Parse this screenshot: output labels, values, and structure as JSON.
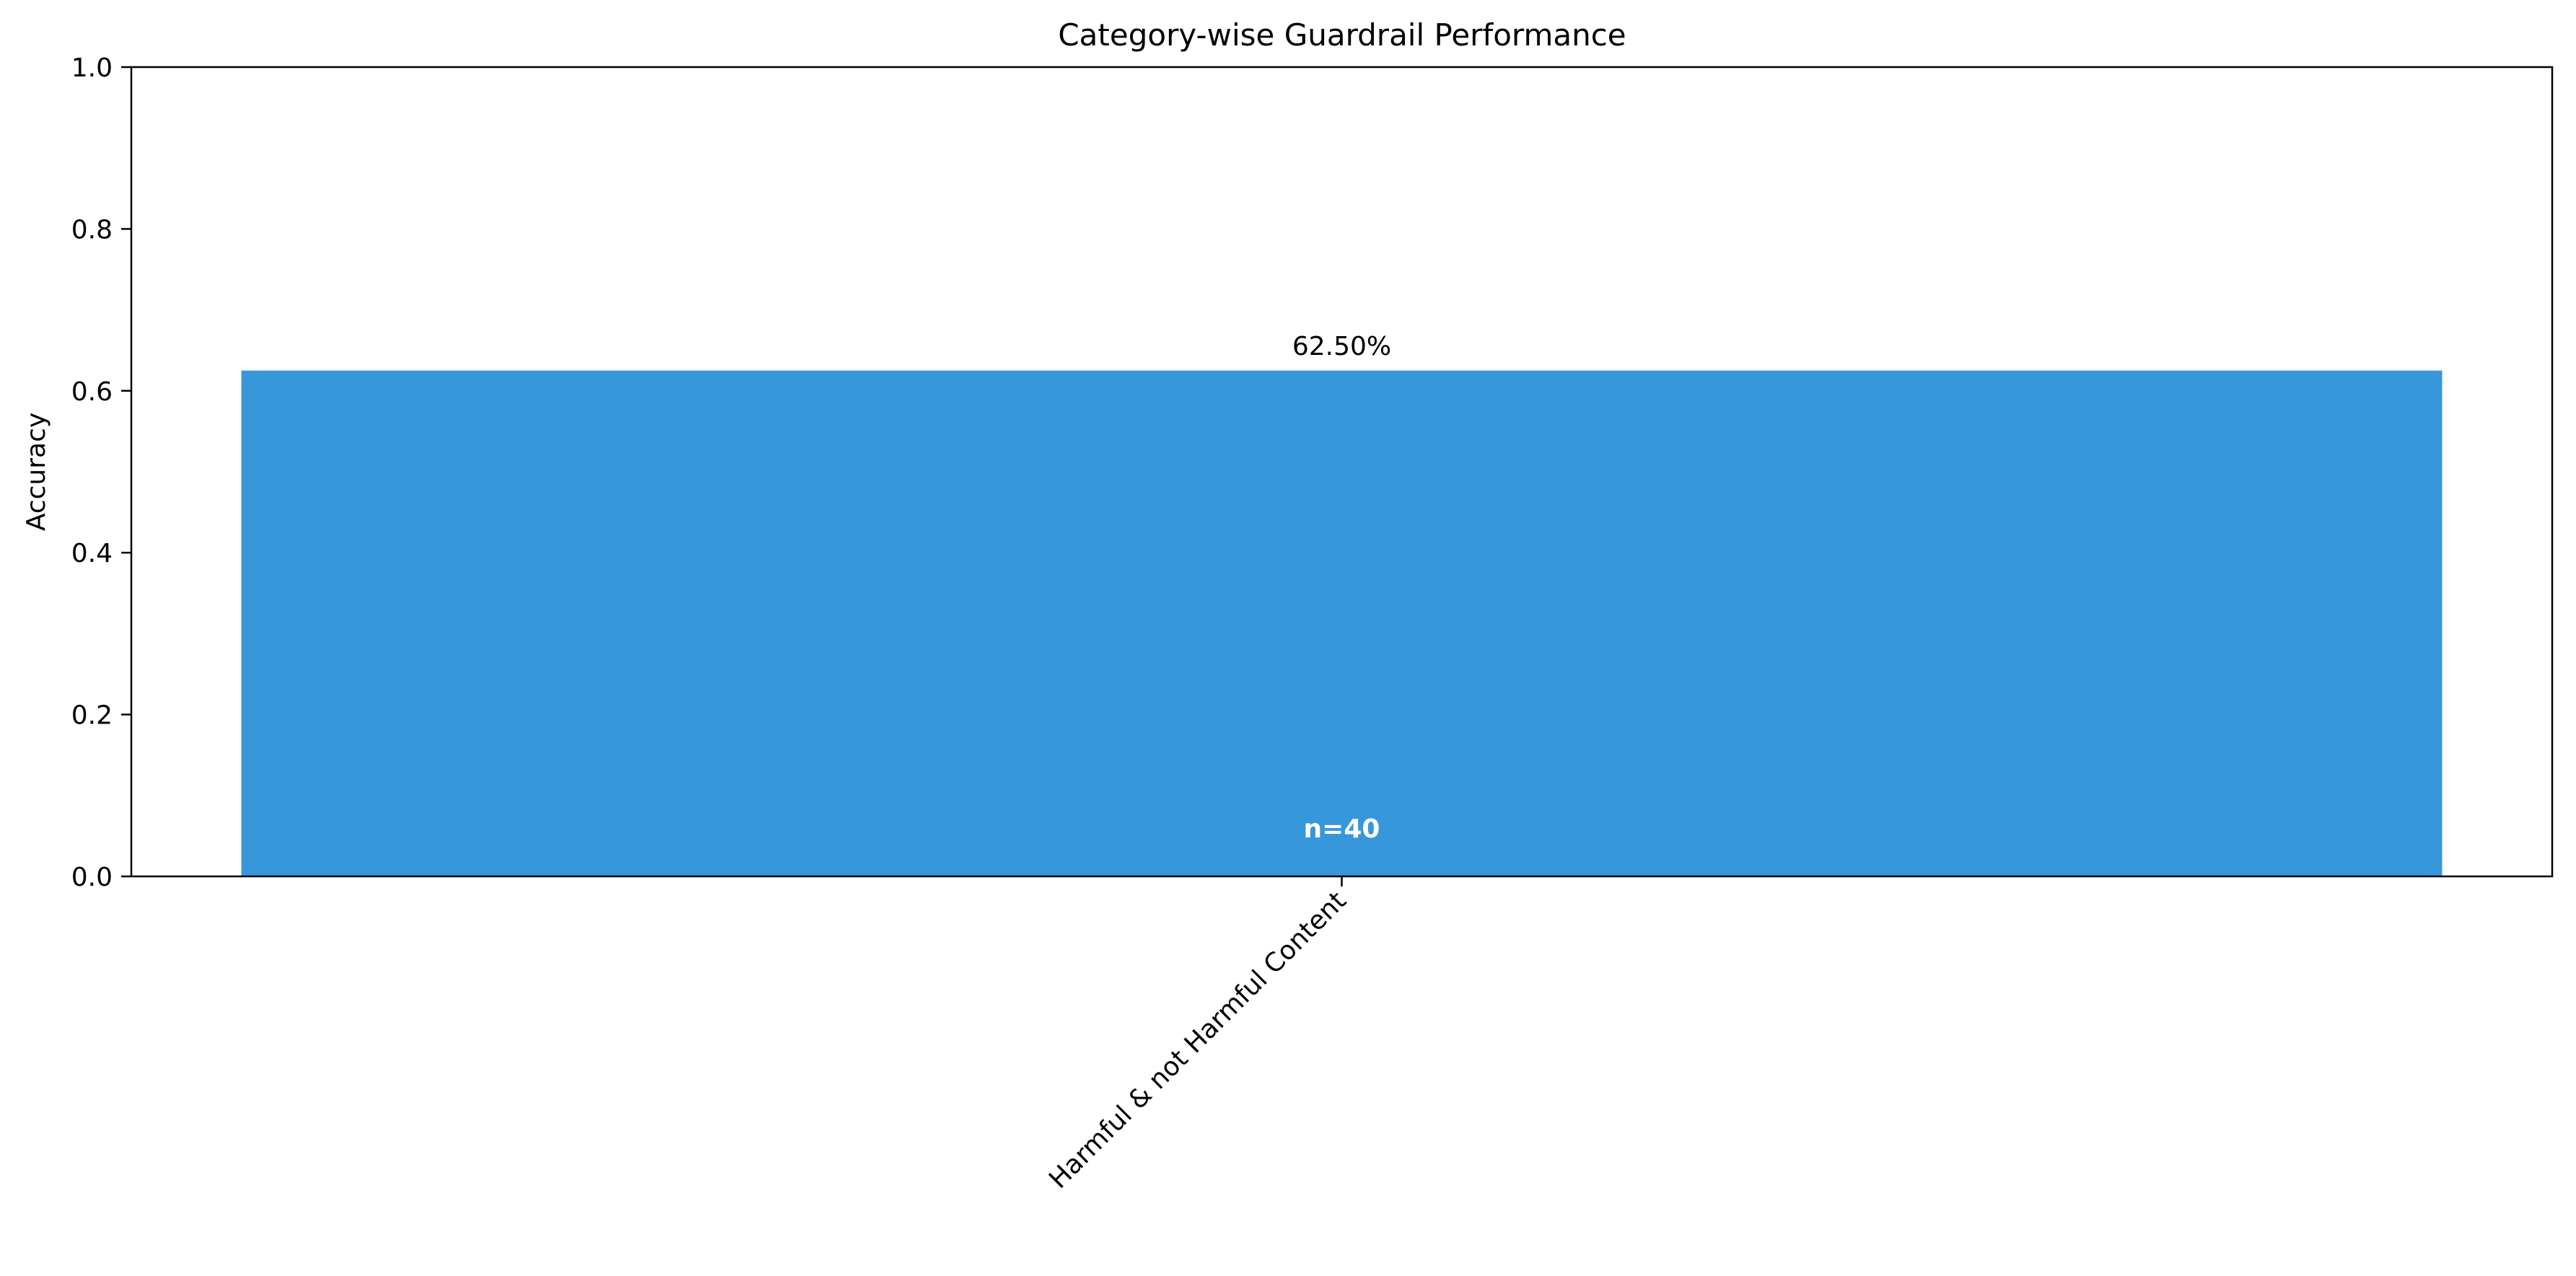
{
  "chart_data": {
    "type": "bar",
    "title": "Category-wise Guardrail Performance",
    "xlabel": "",
    "ylabel": "Accuracy",
    "categories": [
      "Harmful & not Harmful Content"
    ],
    "values": [
      0.625
    ],
    "value_labels": [
      "62.50%"
    ],
    "count_labels": [
      "n=40"
    ],
    "ylim": [
      0,
      1
    ],
    "yticks": [
      0.0,
      0.2,
      0.4,
      0.6,
      0.8,
      1.0
    ],
    "ytick_labels": [
      "0.0",
      "0.2",
      "0.4",
      "0.6",
      "0.8",
      "1.0"
    ],
    "grid": false,
    "legend": "none",
    "bar_color": "#3698db",
    "count_label_color": "#ffffff"
  }
}
